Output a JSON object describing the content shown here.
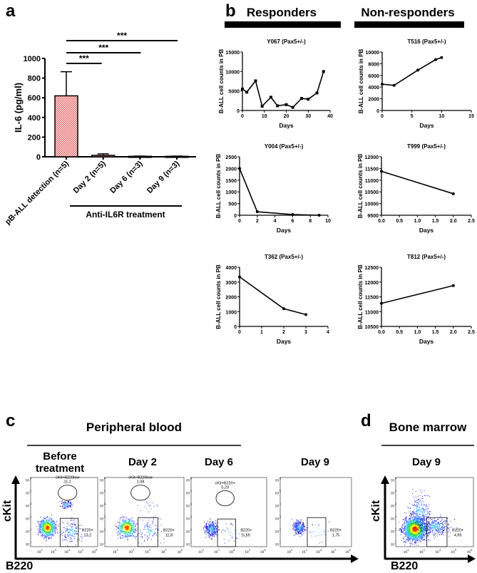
{
  "panels": {
    "a": "a",
    "b": "b",
    "c": "c",
    "d": "d"
  },
  "chart_data": [
    {
      "id": "a",
      "type": "bar",
      "categories": [
        "pB-ALL detection (n=5)",
        "Day 2 (n=5)",
        "Day 6 (n=3)",
        "Day 9 (n=3)"
      ],
      "values": [
        620,
        15,
        5,
        5
      ],
      "errors": [
        245,
        15,
        2,
        2
      ],
      "ylabel": "IL-6 (pg/ml)",
      "ylim": [
        0,
        1000
      ],
      "yticks": [
        0,
        200,
        400,
        600,
        800,
        1000
      ],
      "group_label": "Anti-IL6R treatment",
      "significance": [
        {
          "from": 0,
          "to": 1,
          "label": "***"
        },
        {
          "from": 0,
          "to": 2,
          "label": "***"
        },
        {
          "from": 0,
          "to": 3,
          "label": "***"
        }
      ],
      "bar_color": "#e05050"
    },
    {
      "id": "b",
      "type": "line",
      "groups": [
        "Responders",
        "Non-responders"
      ],
      "xlabel": "Days",
      "ylabel": "B-ALL cell counts in PB",
      "charts": [
        {
          "title": "Y067 (Pax5+/-)",
          "group": "Responders",
          "x": [
            0,
            2,
            6,
            9,
            13,
            16,
            20,
            23,
            27,
            30,
            34,
            37
          ],
          "y": [
            5500,
            4700,
            7600,
            1100,
            3400,
            1200,
            1500,
            800,
            3100,
            2900,
            4500,
            10000
          ],
          "xlim": [
            0,
            40
          ],
          "xticks": [
            0,
            10,
            20,
            30,
            40
          ],
          "ylim": [
            0,
            15000
          ],
          "yticks": [
            0,
            5000,
            10000,
            15000
          ],
          "marker": "square"
        },
        {
          "title": "T516 (Pax5+/-)",
          "group": "Non-responders",
          "x": [
            0,
            2,
            6,
            9,
            10
          ],
          "y": [
            4500,
            4300,
            6900,
            8700,
            9050
          ],
          "xlim": [
            0,
            15
          ],
          "xticks": [
            0,
            5,
            10,
            15
          ],
          "ylim": [
            0,
            10000
          ],
          "yticks": [
            0,
            2000,
            4000,
            6000,
            8000,
            10000
          ],
          "marker": "circle"
        },
        {
          "title": "Y004 (Pax5+/-)",
          "group": "Responders",
          "x": [
            0,
            2,
            6,
            9
          ],
          "y": [
            2000,
            150,
            30,
            0
          ],
          "xlim": [
            0,
            10
          ],
          "xticks": [
            0,
            2,
            4,
            6,
            8,
            10
          ],
          "ylim": [
            0,
            2500
          ],
          "yticks": [
            0,
            500,
            1000,
            1500,
            2000,
            2500
          ],
          "marker": "circle"
        },
        {
          "title": "T999 (Pax5+/-)",
          "group": "Non-responders",
          "x": [
            0,
            2
          ],
          "y": [
            11380,
            10420
          ],
          "xlim": [
            0,
            2.5
          ],
          "xticks": [
            "0.0",
            "0.5",
            "1.0",
            "1.5",
            "2.0",
            "2.5"
          ],
          "ylim": [
            9500,
            12000
          ],
          "yticks": [
            9500,
            10000,
            10500,
            11000,
            11500,
            12000
          ],
          "marker": "circle"
        },
        {
          "title": "T362 (Pax5+/-)",
          "group": "Responders",
          "x": [
            0,
            2,
            3
          ],
          "y": [
            3350,
            1200,
            800
          ],
          "xlim": [
            0,
            4
          ],
          "xticks": [
            0,
            1,
            2,
            3,
            4
          ],
          "ylim": [
            0,
            4000
          ],
          "yticks": [
            0,
            1000,
            2000,
            3000,
            4000
          ],
          "marker": "circle"
        },
        {
          "title": "T812 (Pax5+/-)",
          "group": "Non-responders",
          "x": [
            0,
            2
          ],
          "y": [
            11280,
            11880
          ],
          "xlim": [
            0,
            2.5
          ],
          "xticks": [
            "0.0",
            "0.5",
            "1.0",
            "1.5",
            "2.0",
            "2.5"
          ],
          "ylim": [
            10500,
            12500
          ],
          "yticks": [
            10500,
            11000,
            11500,
            12000,
            12500
          ],
          "marker": "circle"
        }
      ]
    },
    {
      "id": "c-d",
      "type": "scatter",
      "xlabel": "B220",
      "ylabel": "cKit",
      "axis_ticks": [
        "10^1",
        "10^2",
        "10^3",
        "10^4",
        "10^5",
        "10^6"
      ],
      "tissue_headers": [
        "Peripheral blood",
        "Bone marrow"
      ],
      "plots": [
        {
          "panel": "c",
          "title": "Before treatment",
          "gates": [
            {
              "name": "cKit+B220low",
              "value": "11,1"
            },
            {
              "name": "B220+",
              "value": "13,2"
            }
          ]
        },
        {
          "panel": "c",
          "title": "Day 2",
          "gates": [
            {
              "name": "cKit+B220low",
              "value": "1,08"
            },
            {
              "name": "B220+",
              "value": "11,8"
            }
          ]
        },
        {
          "panel": "c",
          "title": "Day 6",
          "gates": [
            {
              "name": "cKit+B220+",
              "value": "0,29"
            },
            {
              "name": "B220+",
              "value": "5,69"
            }
          ]
        },
        {
          "panel": "c",
          "title": "Day 9",
          "gates": [
            {
              "name": "B220+",
              "value": "1,75"
            }
          ]
        },
        {
          "panel": "d",
          "title": "Day 9",
          "gates": [
            {
              "name": "B220+",
              "value": "4,95"
            }
          ]
        }
      ]
    }
  ]
}
